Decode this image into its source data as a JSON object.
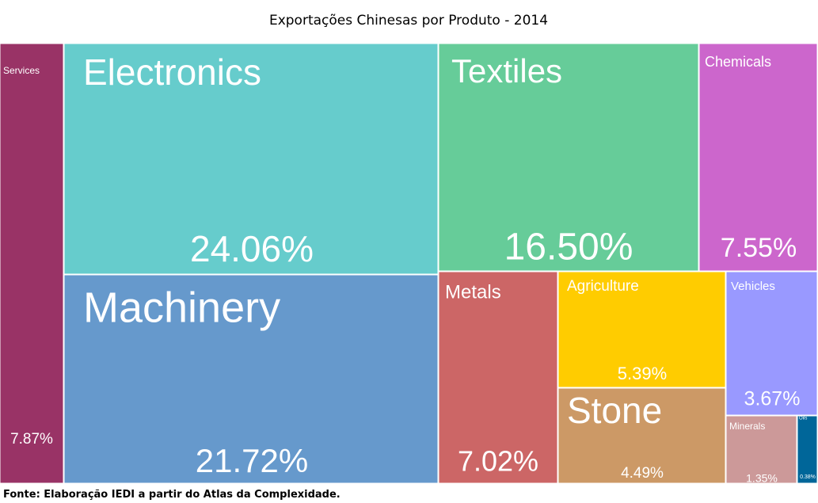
{
  "chart_data": {
    "type": "treemap",
    "title": "Exportações Chinesas por Produto - 2014",
    "source": "Fonte: Elaboração IEDI a partir do Atlas da Complexidade.",
    "categories": [
      "Services",
      "Electronics",
      "Machinery",
      "Textiles",
      "Chemicals",
      "Metals",
      "Agriculture",
      "Stone",
      "Vehicles",
      "Minerals",
      "Oils"
    ],
    "values": [
      7.87,
      24.06,
      21.72,
      16.5,
      7.55,
      7.02,
      5.39,
      4.49,
      3.67,
      1.35,
      0.38
    ],
    "value_labels": [
      "7.87%",
      "24.06%",
      "21.72%",
      "16.50%",
      "7.55%",
      "7.02%",
      "5.39%",
      "4.49%",
      "3.67%",
      "1.35%",
      "0.38%"
    ],
    "colors": [
      "#993366",
      "#66cccc",
      "#6699cc",
      "#66cc99",
      "#cc66cc",
      "#cc6666",
      "#ffcc00",
      "#cc9966",
      "#9999ff",
      "#cc9999",
      "#006699"
    ]
  }
}
